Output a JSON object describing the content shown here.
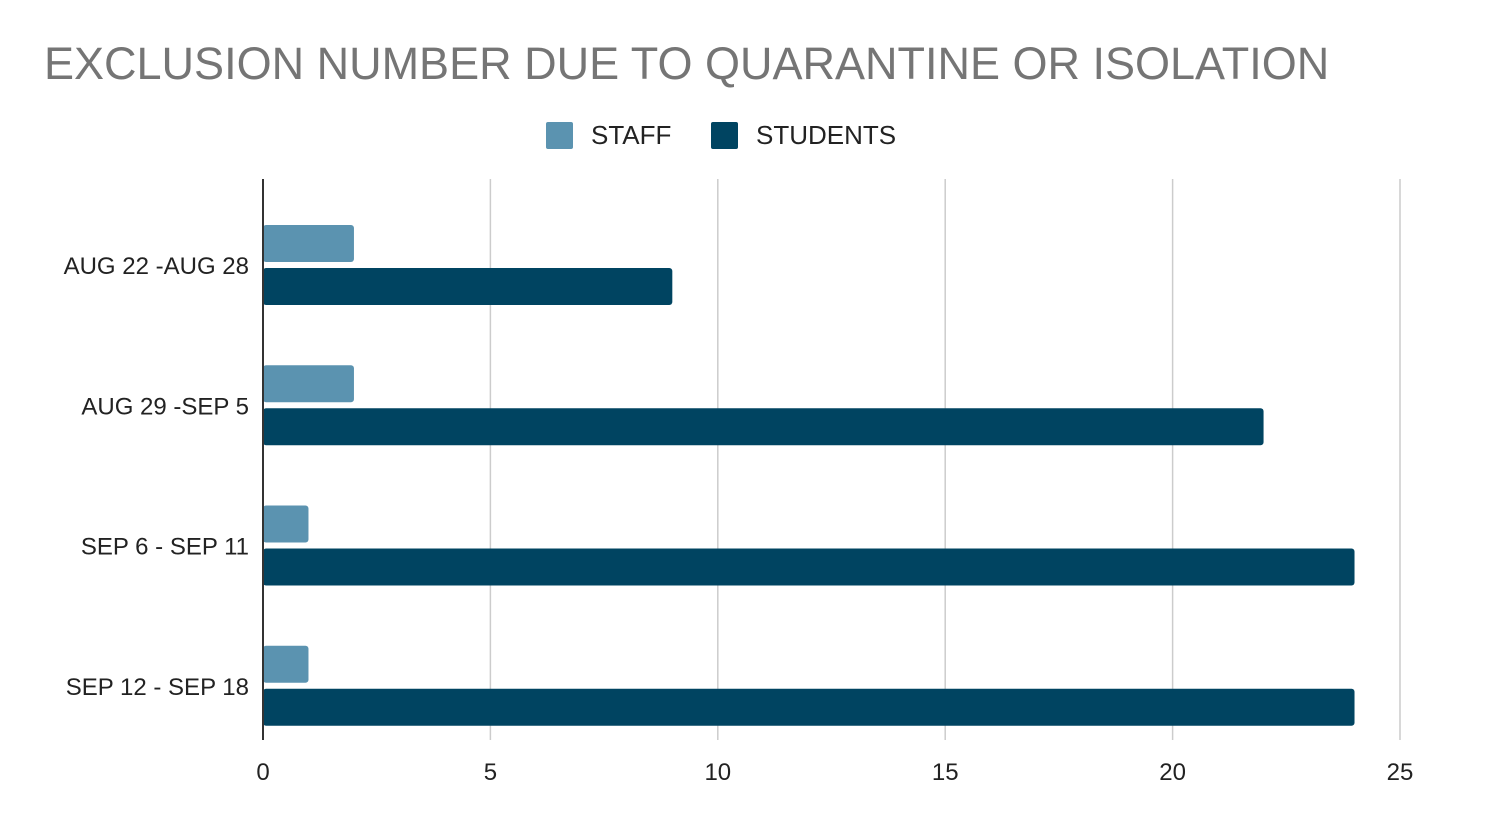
{
  "chart_data": {
    "type": "bar",
    "orientation": "horizontal",
    "title": "EXCLUSION NUMBER DUE TO QUARANTINE OR ISOLATION",
    "categories": [
      "AUG 22 -AUG 28",
      "AUG 29 -SEP 5",
      "SEP 6 - SEP 11",
      "SEP 12 - SEP 18"
    ],
    "series": [
      {
        "name": "STAFF",
        "values": [
          2,
          2,
          1,
          1
        ],
        "color": "#5b93b0"
      },
      {
        "name": "STUDENTS",
        "values": [
          9,
          22,
          24,
          24
        ],
        "color": "#004461"
      }
    ],
    "xlim": [
      0,
      25
    ],
    "xticks": [
      "0",
      "5",
      "10",
      "15",
      "20",
      "25"
    ],
    "xlabel": "",
    "ylabel": "",
    "grid": true,
    "legend": "top-center"
  },
  "colors": {
    "title": "#757575",
    "gridline": "#cccccc",
    "axis": "#333333",
    "text": "#222222"
  }
}
